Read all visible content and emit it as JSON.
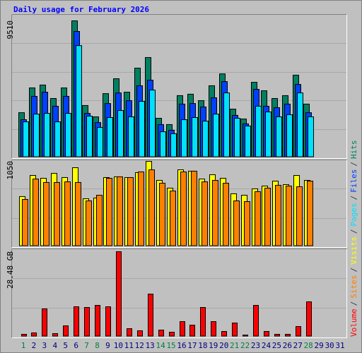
{
  "chart_data": [
    {
      "type": "bar",
      "title": "Daily usage for February 2026",
      "categories": [
        "1",
        "2",
        "3",
        "4",
        "5",
        "6",
        "7",
        "8",
        "9",
        "10",
        "11",
        "12",
        "13",
        "14",
        "15",
        "16",
        "17",
        "18",
        "19",
        "20",
        "21",
        "22",
        "23",
        "24",
        "25",
        "26",
        "27",
        "28",
        "29",
        "30",
        "31"
      ],
      "category_colors": [
        "#008040",
        "#000080",
        "#000080",
        "#000080",
        "#000080",
        "#000080",
        "#008040",
        "#008040",
        "#000080",
        "#000080",
        "#000080",
        "#000080",
        "#000080",
        "#008040",
        "#008040",
        "#000080",
        "#000080",
        "#000080",
        "#000080",
        "#000080",
        "#008040",
        "#008040",
        "#000080",
        "#000080",
        "#000080",
        "#000080",
        "#000080",
        "#008040",
        "#000080",
        "#000080",
        "#000080"
      ],
      "legend_separator": "/",
      "ylim": [
        0,
        9510
      ],
      "yticks": [
        9510
      ],
      "series": [
        {
          "name": "Hits",
          "color": "#008060",
          "values": [
            3100,
            4830,
            5030,
            4090,
            4830,
            9510,
            3600,
            2810,
            4430,
            5470,
            4530,
            6210,
            6950,
            2710,
            2270,
            4290,
            4390,
            3940,
            4980,
            5810,
            3350,
            2660,
            5220,
            4630,
            4090,
            4290,
            5720,
            3700,
            null,
            null,
            null
          ]
        },
        {
          "name": "Files",
          "color": "#0040ff",
          "values": [
            2610,
            4240,
            4530,
            3550,
            4240,
            8770,
            3050,
            2410,
            3740,
            4480,
            3940,
            4980,
            5370,
            2270,
            1870,
            3700,
            3740,
            3500,
            4140,
            5270,
            2910,
            2320,
            4730,
            3550,
            3450,
            3700,
            5070,
            3100,
            null,
            null,
            null
          ]
        },
        {
          "name": "Pages",
          "color": "#00e0ff",
          "values": [
            2460,
            3000,
            3050,
            2460,
            3050,
            7780,
            2860,
            2070,
            2760,
            3250,
            2810,
            3890,
            4680,
            1770,
            1630,
            2610,
            2760,
            2510,
            3000,
            4480,
            2710,
            2170,
            3550,
            3150,
            2810,
            2960,
            4480,
            2810,
            null,
            null,
            null
          ]
        }
      ]
    },
    {
      "type": "bar",
      "ylim": [
        0,
        1050
      ],
      "yticks": [
        1050
      ],
      "series": [
        {
          "name": "Visits",
          "color": "#ffff00",
          "values": [
            613,
            875,
            840,
            901,
            849,
            971,
            586,
            595,
            849,
            858,
            849,
            910,
            1050,
            814,
            718,
            945,
            928,
            831,
            884,
            840,
            648,
            630,
            709,
            744,
            805,
            761,
            875,
            814,
            null,
            null,
            null
          ]
        },
        {
          "name": "Sites",
          "color": "#ff8000",
          "values": [
            578,
            831,
            788,
            788,
            796,
            788,
            560,
            630,
            840,
            858,
            849,
            919,
            945,
            779,
            683,
            919,
            928,
            796,
            814,
            779,
            560,
            551,
            674,
            718,
            753,
            744,
            735,
            805,
            null,
            null,
            null
          ]
        }
      ]
    },
    {
      "type": "bar",
      "ylim": [
        0,
        28.48
      ],
      "yticks": [
        {
          "value": 28.48,
          "label": "28.48 GB"
        }
      ],
      "series": [
        {
          "name": "Volume",
          "color": "#ff0000",
          "values": [
            0.71,
            1.19,
            9.26,
            0.95,
            3.56,
            9.97,
            9.73,
            10.44,
            9.97,
            28.48,
            2.61,
            1.9,
            14.24,
            2.14,
            1.42,
            4.98,
            3.8,
            9.73,
            4.98,
            1.66,
            4.51,
            0.47,
            10.44,
            1.66,
            0.71,
            0.71,
            3.32,
            11.63,
            null,
            null,
            null
          ]
        }
      ]
    }
  ]
}
